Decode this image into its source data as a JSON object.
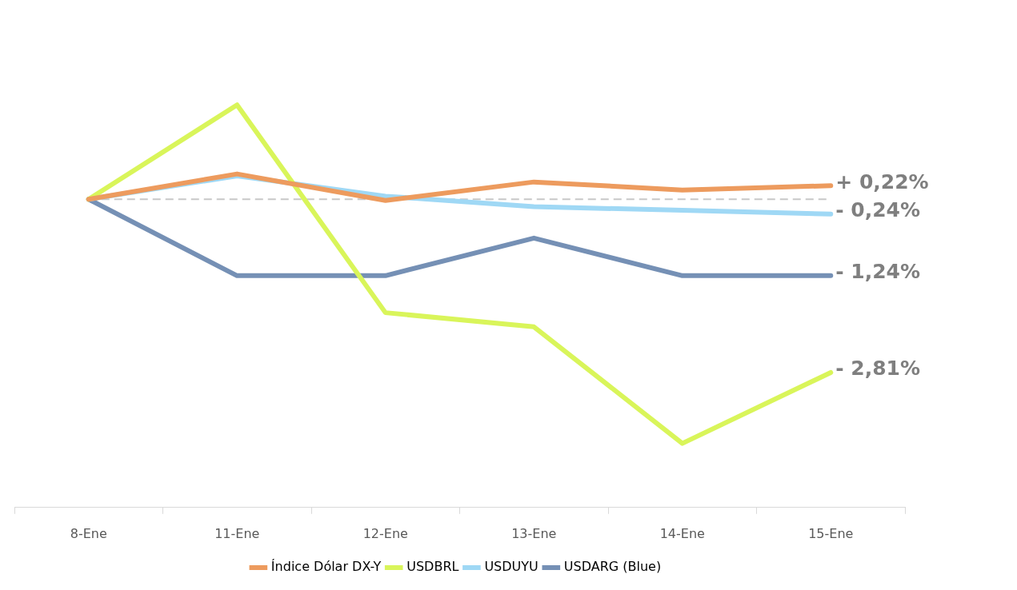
{
  "chart_data": {
    "type": "line",
    "categories": [
      "8-Ene",
      "11-Ene",
      "12-Ene",
      "13-Ene",
      "14-Ene",
      "15-Ene"
    ],
    "series": [
      {
        "name": "Índice Dólar DX-Y",
        "color": "#ed9b5e",
        "values": [
          0,
          0.41,
          -0.02,
          0.28,
          0.15,
          0.22
        ],
        "value_labels": [
          null,
          null,
          null,
          null,
          null,
          "+ 0,22%"
        ]
      },
      {
        "name": "USDBRL",
        "color": "#d9f55a",
        "values": [
          0,
          1.53,
          -1.84,
          -2.07,
          -3.96,
          -2.81
        ],
        "value_labels": [
          null,
          null,
          null,
          null,
          null,
          "- 2,81%"
        ]
      },
      {
        "name": "USDUYU",
        "color": "#9fd8f5",
        "values": [
          0,
          0.38,
          0.05,
          -0.12,
          -0.18,
          -0.24
        ],
        "value_labels": [
          null,
          null,
          null,
          null,
          null,
          "- 0,24%"
        ]
      },
      {
        "name": "USDARG (Blue)",
        "color": "#7590b5",
        "values": [
          0,
          -1.24,
          -1.24,
          -0.63,
          -1.24,
          -1.24
        ],
        "value_labels": [
          null,
          null,
          null,
          null,
          null,
          "- 1,24%"
        ]
      }
    ],
    "relative": false,
    "ref_lines": [
      {
        "axis": "y",
        "value": 0,
        "color": "#c8c8c8",
        "line_style": "dashed"
      }
    ],
    "grid": false,
    "legend": "bottom",
    "marker": "none",
    "line_style": "solid"
  }
}
